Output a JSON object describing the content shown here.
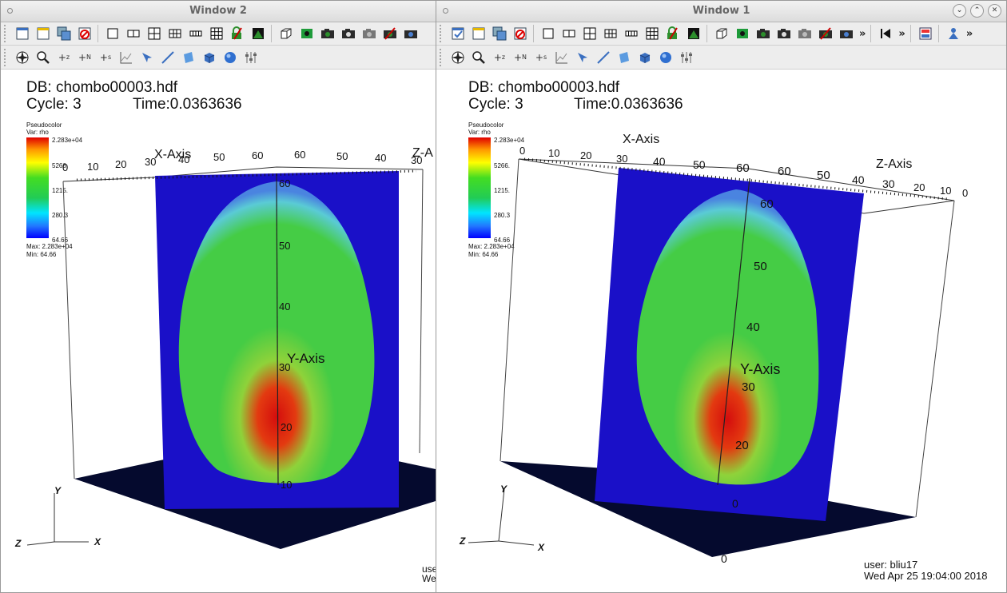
{
  "window2": {
    "title": "Window 2",
    "db": "DB: chombo00003.hdf",
    "cycle": "Cycle: 3",
    "time": "Time:0.0363636",
    "legend": {
      "title": "Pseudocolor",
      "var": "Var: rho",
      "ticks": [
        "2.283e+04",
        "5266.",
        "1215.",
        "280.3",
        "64.66"
      ],
      "max": "Max:  2.283e+04",
      "min": "Min:   64.66"
    },
    "axes": {
      "x_title": "X-Axis",
      "y_title": "Y-Axis",
      "z_title": "Z-A",
      "x_ticks": [
        "10",
        "20",
        "30",
        "40",
        "50",
        "60"
      ],
      "z_ticks": [
        "60",
        "50",
        "40",
        "30"
      ],
      "y_ticks": [
        "60",
        "50",
        "40",
        "30",
        "20",
        "10"
      ],
      "x_extra": "0",
      "triad": {
        "x": "X",
        "y": "Y",
        "z": "Z"
      }
    },
    "footer_user": "use",
    "footer_date": "Wed"
  },
  "window1": {
    "title": "Window 1",
    "db": "DB: chombo00003.hdf",
    "cycle": "Cycle: 3",
    "time": "Time:0.0363636",
    "legend": {
      "title": "Pseudocolor",
      "var": "Var: rho",
      "ticks": [
        "2.283e+04",
        "5266.",
        "1215.",
        "280.3",
        "64.66"
      ],
      "max": "Max:  2.283e+04",
      "min": "Min:   64.66"
    },
    "axes": {
      "x_title": "X-Axis",
      "y_title": "Y-Axis",
      "z_title": "Z-Axis",
      "x_ticks": [
        "0",
        "10",
        "20",
        "30",
        "40",
        "50",
        "60"
      ],
      "z_ticks": [
        "60",
        "50",
        "40",
        "30",
        "20",
        "10",
        "0"
      ],
      "y_ticks": [
        "60",
        "50",
        "40",
        "30",
        "20"
      ],
      "y_bottom": "0",
      "y_zero_behind": "0",
      "triad": {
        "x": "X",
        "y": "Y",
        "z": "Z"
      }
    },
    "footer_user": "user: bliu17",
    "footer_date": "Wed Apr 25 19:04:00 2018"
  },
  "toolbar_overflow": "»",
  "colors": {
    "plane_blue": "#1a10c8",
    "floor": "#050a2e",
    "green": "#38d24a",
    "red": "#d40d0d"
  }
}
